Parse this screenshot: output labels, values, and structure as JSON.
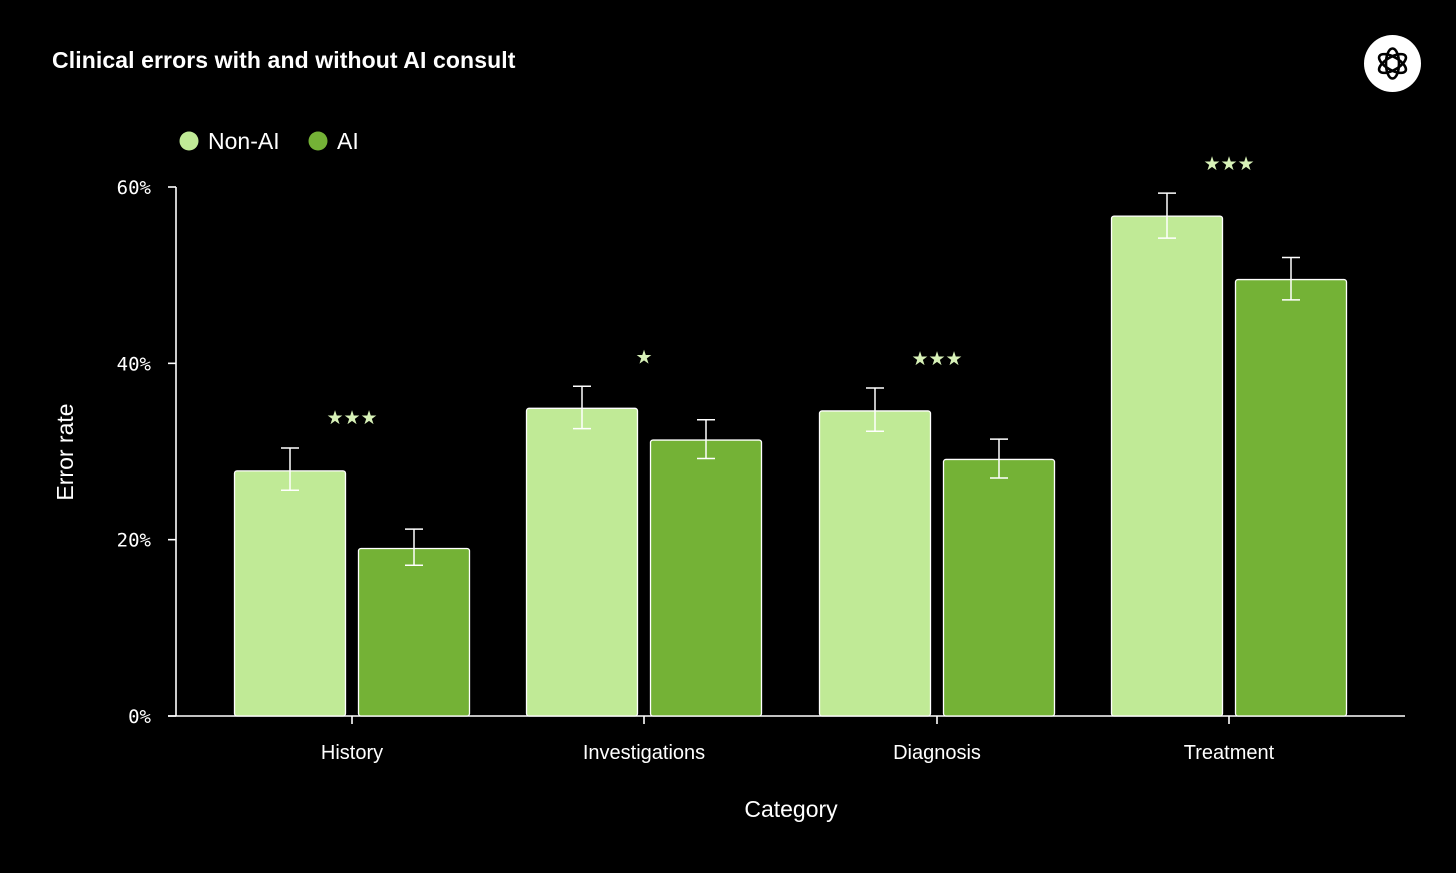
{
  "header": {
    "title": "Clinical errors with and without AI consult",
    "logo_icon": "openai-logo-icon"
  },
  "colors": {
    "background": "#000000",
    "non_ai": "#c0ea96",
    "ai": "#74b236",
    "axis": "#ffffff",
    "significance": "#d8f2b8"
  },
  "chart_data": {
    "type": "bar",
    "title": "Clinical errors with and without AI consult",
    "xlabel": "Category",
    "ylabel": "Error rate",
    "ylim": [
      0,
      60
    ],
    "yticks": [
      0,
      20,
      40,
      60
    ],
    "ytick_labels": [
      "0%",
      "20%",
      "40%",
      "60%"
    ],
    "legend_position": "top-left",
    "categories": [
      "History",
      "Investigations",
      "Diagnosis",
      "Treatment"
    ],
    "series": [
      {
        "name": "Non-AI",
        "values": [
          27.8,
          34.9,
          34.6,
          56.7
        ],
        "err_low": [
          25.6,
          32.6,
          32.3,
          54.2
        ],
        "err_high": [
          30.4,
          37.4,
          37.2,
          59.3
        ]
      },
      {
        "name": "AI",
        "values": [
          19.0,
          31.3,
          29.1,
          49.5
        ],
        "err_low": [
          17.1,
          29.2,
          27.0,
          47.2
        ],
        "err_high": [
          21.2,
          33.6,
          31.4,
          52.0
        ]
      }
    ],
    "significance": [
      {
        "category": "History",
        "label": "★★★",
        "y": 33.9
      },
      {
        "category": "Investigations",
        "label": "★",
        "y": 40.8
      },
      {
        "category": "Diagnosis",
        "label": "★★★",
        "y": 40.6
      },
      {
        "category": "Treatment",
        "label": "★★★",
        "y": 62.7
      }
    ]
  }
}
